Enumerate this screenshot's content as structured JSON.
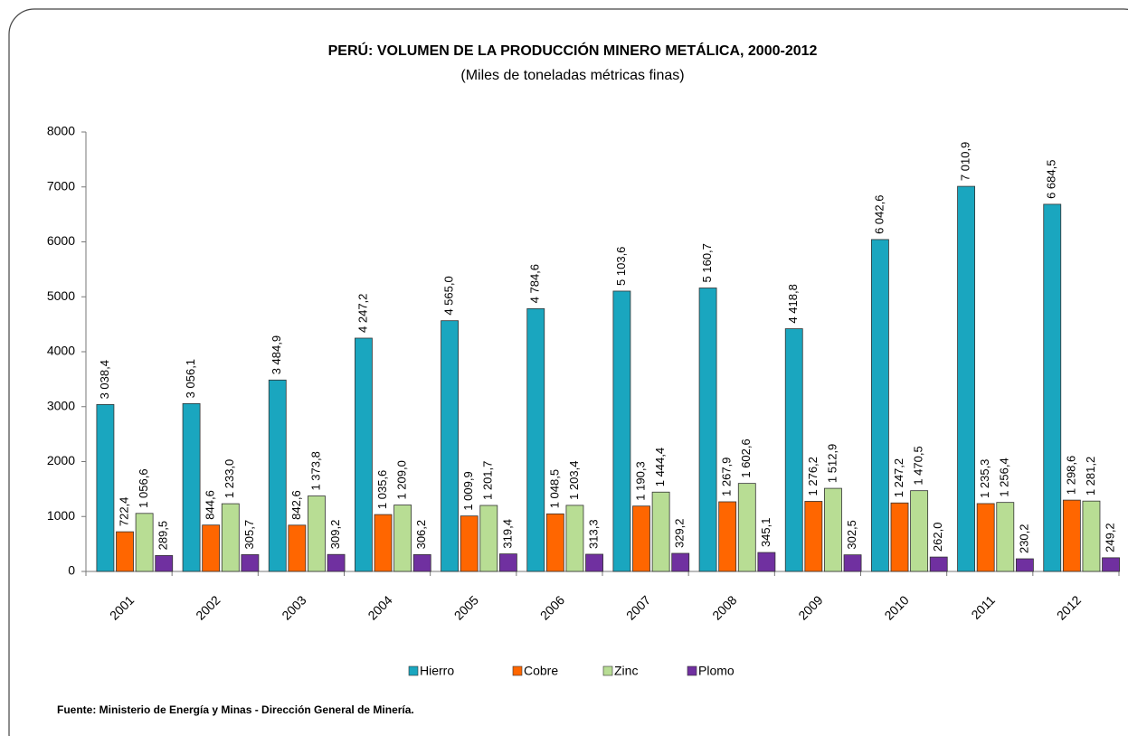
{
  "chart_data": {
    "type": "bar",
    "title": "PERÚ: VOLUMEN DE LA PRODUCCIÓN MINERO METÁLICA, 2000-2012",
    "subtitle": "(Miles de toneladas métricas finas)",
    "source": "Fuente: Ministerio de Energía y Minas - Dirección General de Minería.",
    "categories": [
      "2001",
      "2002",
      "2003",
      "2004",
      "2005",
      "2006",
      "2007",
      "2008",
      "2009",
      "2010",
      "2011",
      "2012"
    ],
    "series": [
      {
        "name": "Hierro",
        "color": "#1aa6bf",
        "values": [
          3038.4,
          3056.1,
          3484.9,
          4247.2,
          4565.0,
          4784.6,
          5103.6,
          5160.7,
          4418.8,
          6042.6,
          7010.9,
          6684.5
        ],
        "value_labels": [
          "3 038,4",
          "3 056,1",
          "3 484,9",
          "4 247,2",
          "4 565,0",
          "4 784,6",
          "5 103,6",
          "5 160,7",
          "4 418,8",
          "6 042,6",
          "7 010,9",
          "6 684,5"
        ]
      },
      {
        "name": "Cobre",
        "color": "#ff6600",
        "values": [
          722.4,
          844.6,
          842.6,
          1035.6,
          1009.9,
          1048.5,
          1190.3,
          1267.9,
          1276.2,
          1247.2,
          1235.3,
          1298.6
        ],
        "value_labels": [
          "722,4",
          "844,6",
          "842,6",
          "1 035,6",
          "1 009,9",
          "1 048,5",
          "1 190,3",
          "1 267,9",
          "1 276,2",
          "1 247,2",
          "1 235,3",
          "1 298,6"
        ]
      },
      {
        "name": "Zinc",
        "color": "#b8dd94",
        "values": [
          1056.6,
          1233.0,
          1373.8,
          1209.0,
          1201.7,
          1203.4,
          1444.4,
          1602.6,
          1512.9,
          1470.5,
          1256.4,
          1281.2
        ],
        "value_labels": [
          "1 056,6",
          "1 233,0",
          "1 373,8",
          "1 209,0",
          "1 201,7",
          "1 203,4",
          "1 444,4",
          "1 602,6",
          "1 512,9",
          "1 470,5",
          "1 256,4",
          "1 281,2"
        ]
      },
      {
        "name": "Plomo",
        "color": "#7030a0",
        "values": [
          289.5,
          305.7,
          309.2,
          306.2,
          319.4,
          313.3,
          329.2,
          345.1,
          302.5,
          262.0,
          230.2,
          249.2
        ],
        "value_labels": [
          "289,5",
          "305,7",
          "309,2",
          "306,2",
          "319,4",
          "313,3",
          "329,2",
          "345,1",
          "302,5",
          "262,0",
          "230,2",
          "249,2"
        ]
      }
    ],
    "ylim": [
      0,
      8000
    ],
    "yticks": [
      0,
      1000,
      2000,
      3000,
      4000,
      5000,
      6000,
      7000,
      8000
    ],
    "grid": false,
    "legend": "bottom"
  }
}
